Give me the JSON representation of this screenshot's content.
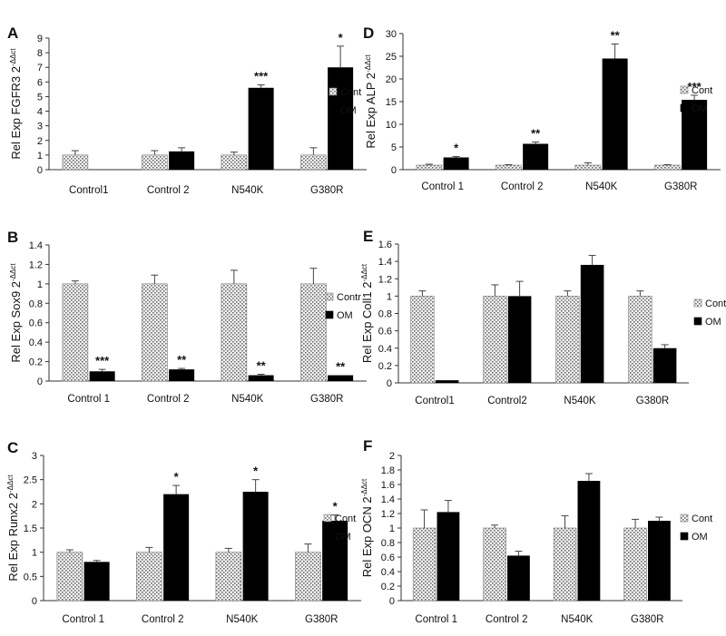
{
  "chart_data": [
    {
      "panel": "A",
      "type": "bar",
      "ylabel": "Rel Exp FGFR3 2",
      "ylabel_sup": "-ΔΔct",
      "categories": [
        "Control1",
        "Control 2",
        "N540K",
        "G380R"
      ],
      "ylim": [
        0,
        9
      ],
      "yticks": [
        0,
        1,
        2,
        3,
        4,
        5,
        6,
        7,
        8,
        9
      ],
      "ytick_labels": [
        "0",
        "1",
        "2",
        "3",
        "4",
        "5",
        "6",
        "7",
        "8",
        "9"
      ],
      "series": [
        {
          "name": "Cont",
          "values": [
            1.0,
            1.0,
            1.0,
            1.0
          ],
          "errors": [
            0.3,
            0.3,
            0.2,
            0.5
          ],
          "sig": [
            "",
            "",
            "",
            ""
          ]
        },
        {
          "name": "OM",
          "values": [
            0.0,
            1.25,
            5.6,
            7.0
          ],
          "errors": [
            0.0,
            0.25,
            0.2,
            1.45
          ],
          "sig": [
            "",
            "",
            "***",
            "*"
          ]
        }
      ],
      "legend": "right"
    },
    {
      "panel": "D",
      "type": "bar",
      "ylabel": "Rel Exp ALP 2",
      "ylabel_sup": "-ΔΔct",
      "categories": [
        "Control 1",
        "Control 2",
        "N540K",
        "G380R"
      ],
      "ylim": [
        0,
        30
      ],
      "yticks": [
        0,
        5,
        10,
        15,
        20,
        25,
        30
      ],
      "ytick_labels": [
        "0",
        "5",
        "10",
        "15",
        "20",
        "25",
        "30"
      ],
      "series": [
        {
          "name": "Cont",
          "values": [
            1.0,
            1.0,
            1.0,
            1.0
          ],
          "errors": [
            0.2,
            0.1,
            0.5,
            0.1
          ],
          "sig": [
            "",
            "",
            "",
            ""
          ]
        },
        {
          "name": "OM",
          "values": [
            2.7,
            5.7,
            24.5,
            15.4
          ],
          "errors": [
            0.2,
            0.4,
            3.2,
            1.0
          ],
          "sig": [
            "*",
            "**",
            "**",
            "***"
          ]
        }
      ],
      "legend": "right"
    },
    {
      "panel": "B",
      "type": "bar",
      "ylabel": "Rel Exp Sox9 2",
      "ylabel_sup": "-ΔΔct",
      "categories": [
        "Control 1",
        "Control 2",
        "N540K",
        "G380R"
      ],
      "ylim": [
        0,
        1.4
      ],
      "yticks": [
        0,
        0.2,
        0.4,
        0.6,
        0.8,
        1.0,
        1.2,
        1.4
      ],
      "ytick_labels": [
        "0",
        "0.2",
        "0.4",
        "0.6",
        "0.8",
        "1",
        "1.2",
        "1.4"
      ],
      "series": [
        {
          "name": "Contr",
          "values": [
            1.0,
            1.0,
            1.0,
            1.0
          ],
          "errors": [
            0.03,
            0.09,
            0.14,
            0.16
          ],
          "sig": [
            "",
            "",
            "",
            ""
          ]
        },
        {
          "name": "OM",
          "values": [
            0.1,
            0.12,
            0.06,
            0.06
          ],
          "errors": [
            0.02,
            0.01,
            0.01,
            0.0
          ],
          "sig": [
            "***",
            "**",
            "**",
            "**"
          ]
        }
      ],
      "legend": "right"
    },
    {
      "panel": "E",
      "type": "bar",
      "ylabel": "Rel Exp Coll1 2",
      "ylabel_sup": "-ΔΔct",
      "categories": [
        "Control1",
        "Control2",
        "N540K",
        "G380R"
      ],
      "ylim": [
        0,
        1.6
      ],
      "yticks": [
        0,
        0.2,
        0.4,
        0.6,
        0.8,
        1.0,
        1.2,
        1.4,
        1.6
      ],
      "ytick_labels": [
        "0",
        "0.2",
        "0.4",
        "0.6",
        "0.8",
        "1",
        "1.2",
        "1.4",
        "1.6"
      ],
      "series": [
        {
          "name": "Cont",
          "values": [
            1.0,
            1.0,
            1.0,
            1.0
          ],
          "errors": [
            0.06,
            0.13,
            0.06,
            0.06
          ],
          "sig": [
            "",
            "",
            "",
            ""
          ]
        },
        {
          "name": "OM",
          "values": [
            0.03,
            1.0,
            1.36,
            0.4
          ],
          "errors": [
            0.0,
            0.17,
            0.11,
            0.04
          ],
          "sig": [
            "",
            "",
            "",
            ""
          ]
        }
      ],
      "legend": "right"
    },
    {
      "panel": "C",
      "type": "bar",
      "ylabel": "Rel Exp Runx2 2",
      "ylabel_sup": "-ΔΔct",
      "categories": [
        "Control 1",
        "Control 2",
        "N540K",
        "G380R"
      ],
      "ylim": [
        0,
        3
      ],
      "yticks": [
        0,
        0.5,
        1.0,
        1.5,
        2.0,
        2.5,
        3.0
      ],
      "ytick_labels": [
        "0",
        "0.5",
        "1",
        "1.5",
        "2",
        "2.5",
        "3"
      ],
      "series": [
        {
          "name": "Cont",
          "values": [
            1.0,
            1.0,
            1.0,
            1.0
          ],
          "errors": [
            0.05,
            0.1,
            0.08,
            0.17
          ],
          "sig": [
            "",
            "",
            "",
            ""
          ]
        },
        {
          "name": "OM",
          "values": [
            0.8,
            2.2,
            2.25,
            1.65
          ],
          "errors": [
            0.03,
            0.18,
            0.25,
            0.12
          ],
          "sig": [
            "",
            "*",
            "*",
            "*"
          ]
        }
      ],
      "legend": "right"
    },
    {
      "panel": "F",
      "type": "bar",
      "ylabel": "Rel Exp OCN 2",
      "ylabel_sup": "-ΔΔct",
      "categories": [
        "Control 1",
        "Control 2",
        "N540K",
        "G380R"
      ],
      "ylim": [
        0,
        2
      ],
      "yticks": [
        0,
        0.2,
        0.4,
        0.6,
        0.8,
        1.0,
        1.2,
        1.4,
        1.6,
        1.8,
        2.0
      ],
      "ytick_labels": [
        "0",
        "0.2",
        "0.4",
        "0.6",
        "0.8",
        "1",
        "1.2",
        "1.4",
        "1.6",
        "1.8",
        "2"
      ],
      "series": [
        {
          "name": "Cont",
          "values": [
            1.0,
            1.0,
            1.0,
            1.0
          ],
          "errors": [
            0.25,
            0.04,
            0.17,
            0.12
          ],
          "sig": [
            "",
            "",
            "",
            ""
          ]
        },
        {
          "name": "OM",
          "values": [
            1.22,
            0.62,
            1.65,
            1.1
          ],
          "errors": [
            0.16,
            0.06,
            0.1,
            0.05
          ],
          "sig": [
            "",
            "",
            "",
            ""
          ]
        }
      ],
      "legend": "right"
    }
  ]
}
